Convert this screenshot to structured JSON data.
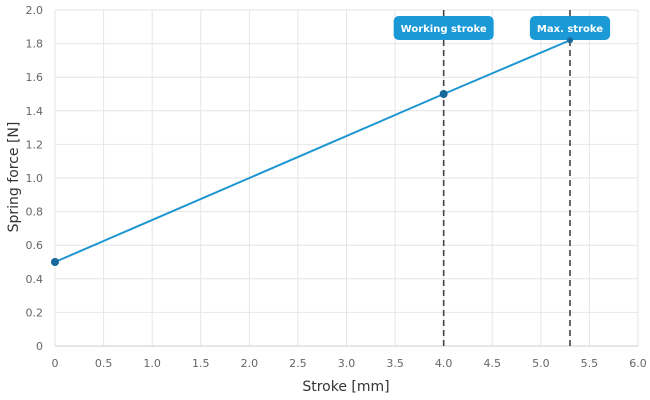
{
  "chart_data": {
    "type": "line",
    "xlabel": "Stroke [mm]",
    "ylabel": "Spring force [N]",
    "xlim": [
      0,
      6.0
    ],
    "ylim": [
      0,
      2.0
    ],
    "x_ticks": [
      "0",
      "0.5",
      "1.0",
      "1.5",
      "2.0",
      "2.5",
      "3.0",
      "3.5",
      "4.0",
      "4.5",
      "5.0",
      "5.5",
      "6.0"
    ],
    "y_ticks": [
      "0",
      "0.2",
      "0.4",
      "0.6",
      "0.8",
      "1.0",
      "1.2",
      "1.4",
      "1.6",
      "1.8",
      "2.0"
    ],
    "grid": true,
    "series": [
      {
        "color": "#1f96d1",
        "points": [
          {
            "x": 0,
            "y": 0.5
          },
          {
            "x": 4.0,
            "y": 1.5
          },
          {
            "x": 5.3,
            "y": 1.82
          }
        ]
      }
    ],
    "markers": [
      {
        "label": "Working stroke",
        "x": 4.0
      },
      {
        "label": "Max. stroke",
        "x": 5.3
      }
    ]
  },
  "colors": {
    "line": "#1f96d1",
    "point": "#17699a",
    "badge": "#1a99d6",
    "grid": "#e6e6e6",
    "marker_line": "#444444"
  }
}
